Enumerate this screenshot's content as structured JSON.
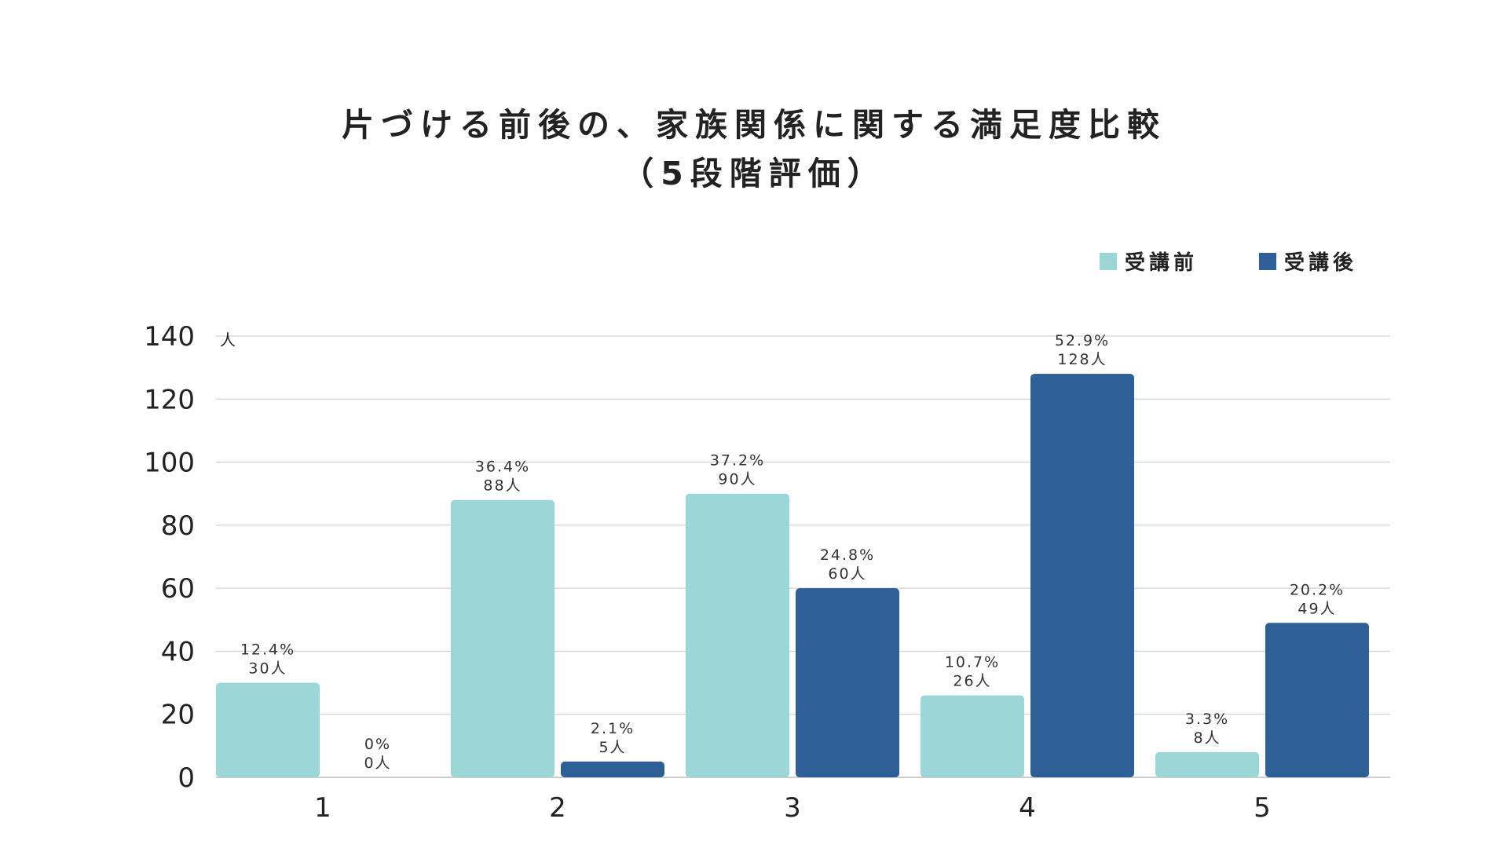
{
  "title": {
    "line1": "片づける前後の、家族関係に関する満足度比較",
    "line2": "（5段階評価）"
  },
  "colors": {
    "before": "#9dd6d7",
    "after": "#2e5f97",
    "grid": "#d4d4d4",
    "axis": "#cfcfcf"
  },
  "chart_data": {
    "type": "bar",
    "title": "片づける前後の、家族関係に関する満足度比較（5段階評価）",
    "categories": [
      "1",
      "2",
      "3",
      "4",
      "5"
    ],
    "series": [
      {
        "name": "受講前",
        "values": [
          30,
          88,
          90,
          26,
          8
        ],
        "labels_pct": [
          "12.4%",
          "36.4%",
          "37.2%",
          "10.7%",
          "3.3%"
        ],
        "labels_count": [
          "30人",
          "88人",
          "90人",
          "26人",
          "8人"
        ]
      },
      {
        "name": "受講後",
        "values": [
          0,
          5,
          60,
          128,
          49
        ],
        "labels_pct": [
          "0%",
          "2.1%",
          "24.8%",
          "52.9%",
          "20.2%"
        ],
        "labels_count": [
          "0人",
          "5人",
          "60人",
          "128人",
          "49人"
        ]
      }
    ],
    "ylabel": "人",
    "ylim": [
      0,
      140
    ],
    "yticks": [
      0,
      20,
      40,
      60,
      80,
      100,
      120,
      140
    ],
    "grid": true,
    "legend_position": "top-right"
  }
}
